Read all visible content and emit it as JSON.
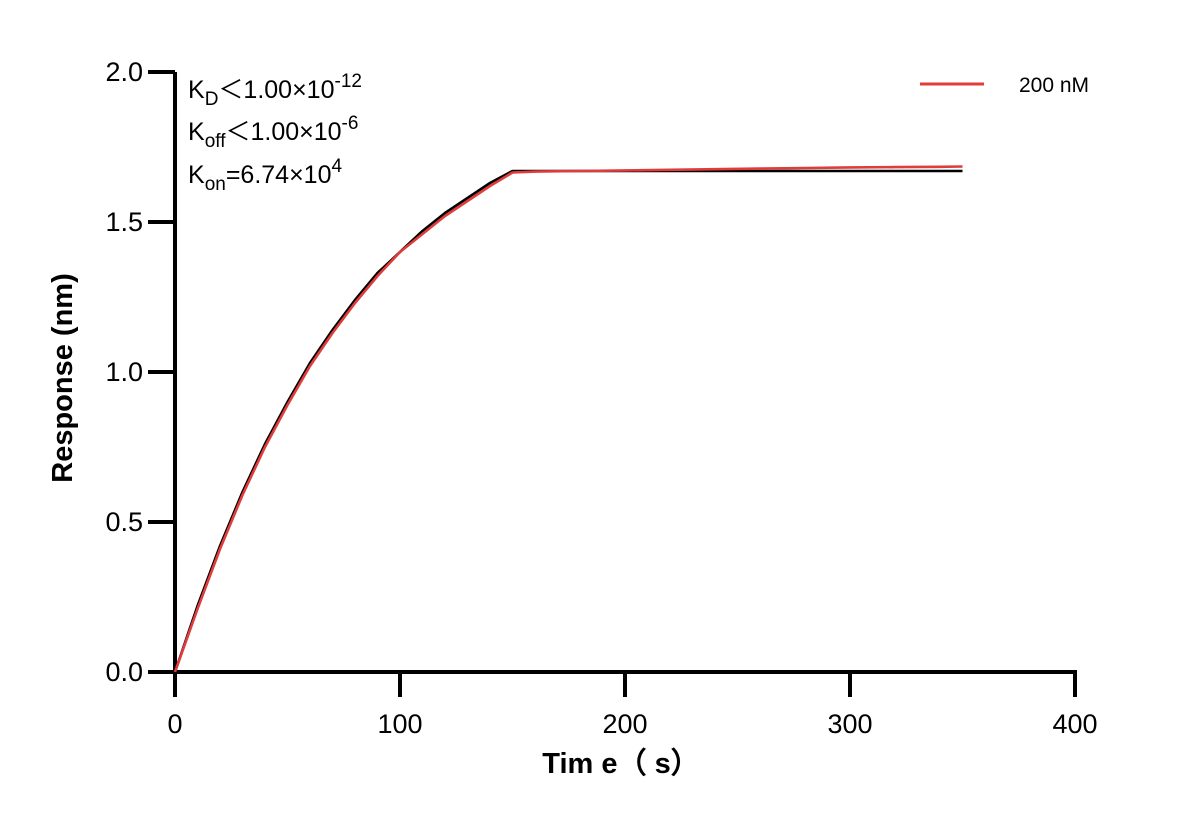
{
  "chart_data": {
    "type": "line",
    "xlabel": "Tim e（ s）",
    "ylabel": "Response (nm)",
    "xlim": [
      0,
      400
    ],
    "ylim": [
      0,
      2.0
    ],
    "x_ticks": [
      "0",
      "100",
      "200",
      "300",
      "400"
    ],
    "y_ticks": [
      "0.0",
      "0.5",
      "1.0",
      "1.5",
      "2.0"
    ],
    "grid": false,
    "legend_position": "top-right",
    "annotations": {
      "kd": {
        "k": "K",
        "sub": "D",
        "rest": "＜1.00×10",
        "sup": "-12"
      },
      "koff": {
        "k": "K",
        "sub": "off",
        "rest": "＜1.00×10",
        "sup": "-6"
      },
      "kon": {
        "k": "K",
        "sub": "on",
        "rest": "=6.74×10",
        "sup": "4"
      }
    },
    "series": [
      {
        "name": "200 nM",
        "color": "#e03c3c",
        "x": [
          0,
          10,
          20,
          30,
          40,
          50,
          60,
          70,
          80,
          90,
          100,
          110,
          120,
          130,
          140,
          150,
          160,
          180,
          200,
          220,
          240,
          260,
          280,
          300,
          320,
          340,
          350
        ],
        "y": [
          0.0,
          0.21,
          0.41,
          0.59,
          0.75,
          0.89,
          1.02,
          1.13,
          1.23,
          1.32,
          1.4,
          1.46,
          1.52,
          1.57,
          1.62,
          1.665,
          1.668,
          1.67,
          1.672,
          1.674,
          1.676,
          1.678,
          1.68,
          1.682,
          1.683,
          1.684,
          1.685
        ]
      },
      {
        "color": "#000000",
        "x": [
          0,
          10,
          20,
          30,
          40,
          50,
          60,
          70,
          80,
          90,
          100,
          110,
          120,
          130,
          140,
          150,
          160,
          200,
          250,
          300,
          350
        ],
        "y": [
          0.0,
          0.22,
          0.42,
          0.6,
          0.76,
          0.9,
          1.03,
          1.14,
          1.24,
          1.33,
          1.4,
          1.47,
          1.53,
          1.58,
          1.63,
          1.67,
          1.67,
          1.67,
          1.67,
          1.67,
          1.67
        ]
      }
    ]
  }
}
